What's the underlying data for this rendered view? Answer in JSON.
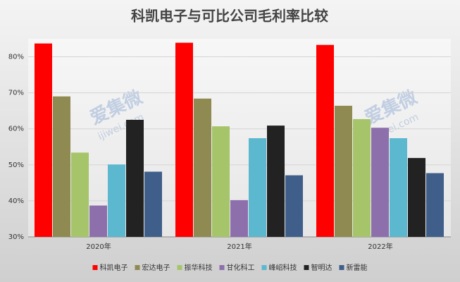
{
  "chart_data": {
    "type": "bar",
    "title": "科凯电子与可比公司毛利率比较",
    "categories": [
      "2020年",
      "2021年",
      "2022年"
    ],
    "series": [
      {
        "name": "科凯电子",
        "color": "#ff0000",
        "values": [
          83.7,
          83.9,
          83.3
        ]
      },
      {
        "name": "宏达电子",
        "color": "#8e8a52",
        "values": [
          69.0,
          68.4,
          66.4
        ]
      },
      {
        "name": "振华科技",
        "color": "#a6c56a",
        "values": [
          53.4,
          60.7,
          62.7
        ]
      },
      {
        "name": "甘化科工",
        "color": "#8d6fac",
        "values": [
          38.7,
          40.2,
          60.3
        ]
      },
      {
        "name": "峰岹科技",
        "color": "#5bb8cf",
        "values": [
          50.1,
          57.4,
          57.4
        ]
      },
      {
        "name": "智明达",
        "color": "#222222",
        "values": [
          62.5,
          60.9,
          51.9
        ]
      },
      {
        "name": "新雷能",
        "color": "#3f5f8a",
        "values": [
          48.1,
          47.1,
          47.7
        ]
      }
    ],
    "ylim": [
      30,
      85
    ],
    "yticks": [
      {
        "value": 30,
        "label": "30%"
      },
      {
        "value": 40,
        "label": "40%"
      },
      {
        "value": 50,
        "label": "50%"
      },
      {
        "value": 60,
        "label": "60%"
      },
      {
        "value": 70,
        "label": "70%"
      },
      {
        "value": 80,
        "label": "80%"
      }
    ],
    "grid": true,
    "legend": "bottom",
    "watermark": {
      "brand": "爱集微",
      "site": "ijiwei.com"
    }
  }
}
